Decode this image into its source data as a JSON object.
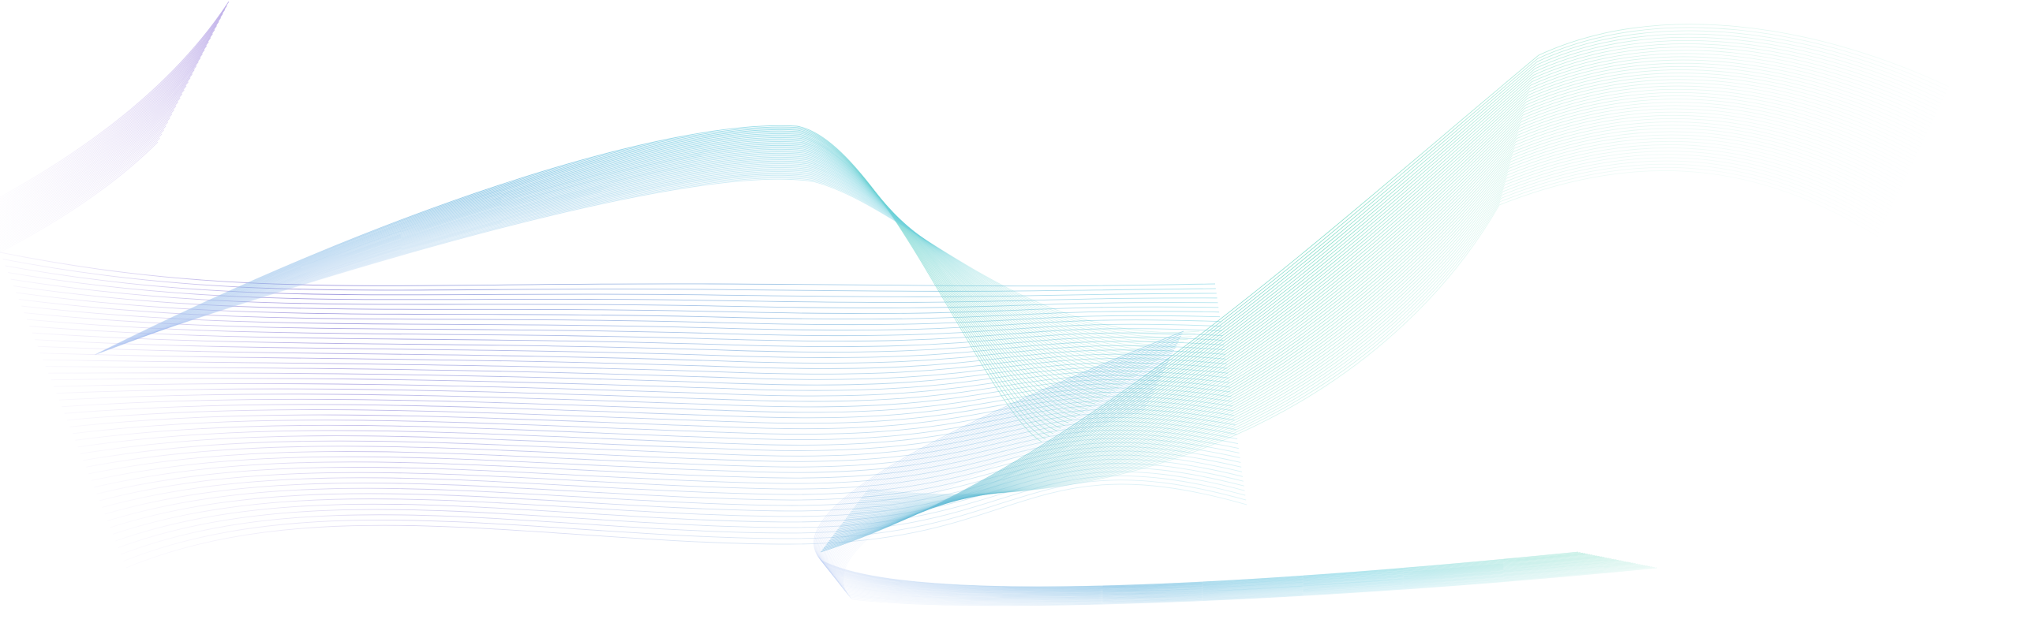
{
  "artwork": {
    "kind": "abstract flowing line waves",
    "background_color": "#ffffff",
    "palette": {
      "violet": "#8b7fd6",
      "lavender": "#c9b8ec",
      "blue": "#7fa8dc",
      "cyan": "#6fcfe0",
      "teal": "#5fd4b8",
      "mint": "#9fe6cf"
    }
  }
}
